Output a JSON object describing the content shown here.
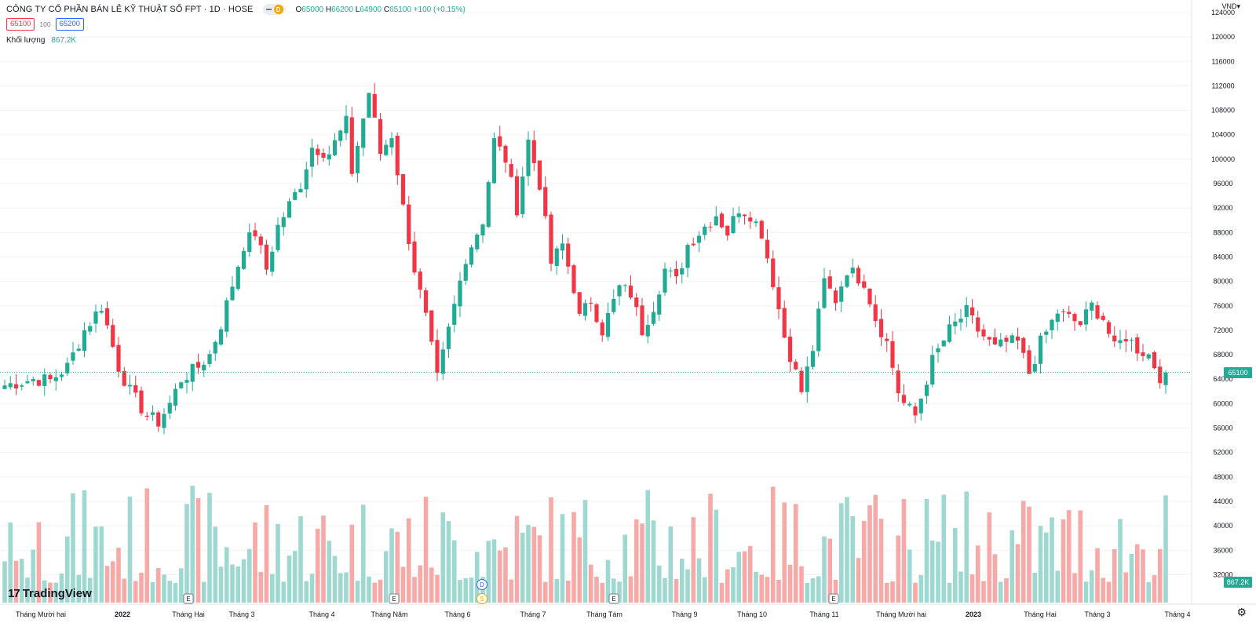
{
  "header": {
    "title": "CÔNG TY CỔ PHẦN BÁN LẺ KỸ THUẬT SỐ FPT · 1D · HOSE",
    "status_badge": "D",
    "ohlc": {
      "o_label": "O",
      "o": "65000",
      "h_label": "H",
      "h": "66200",
      "l_label": "L",
      "l": "64900",
      "c_label": "C",
      "c": "65100",
      "change": "+100 (+0.15%)"
    },
    "bid": "65100",
    "spread": "100",
    "ask": "65200",
    "volume_label": "Khối lượng",
    "volume_value": "867.2K",
    "currency": "VND"
  },
  "branding": {
    "logo_mark": "17",
    "logo_text": "TradingView"
  },
  "colors": {
    "up": "#22ab94",
    "down": "#f23645",
    "up_vol": "#9fd8d0",
    "down_vol": "#f7a9a7",
    "grid": "#f0f3fa"
  },
  "chart_data": {
    "type": "candlestick",
    "y_axis": {
      "min": 30000,
      "max": 124000,
      "ticks": [
        32000,
        36000,
        40000,
        44000,
        48000,
        52000,
        56000,
        60000,
        64000,
        68000,
        72000,
        76000,
        80000,
        84000,
        88000,
        92000,
        96000,
        100000,
        104000,
        108000,
        112000,
        116000,
        120000,
        124000
      ]
    },
    "x_axis_labels": [
      "Tháng Mười hai",
      "2022",
      "Tháng Hai",
      "Tháng 3",
      "Tháng 4",
      "Tháng Năm",
      "Tháng 6",
      "Tháng 7",
      "Tháng Tám",
      "Tháng 9",
      "Tháng 10",
      "Tháng 11",
      "Tháng Mười hai",
      "2023",
      "Tháng Hai",
      "Tháng 3",
      "Tháng 4"
    ],
    "price_path": [
      [
        0,
        63000
      ],
      [
        5,
        64000
      ],
      [
        8,
        63800
      ],
      [
        11,
        66000
      ],
      [
        14,
        72000
      ],
      [
        17,
        76000
      ],
      [
        20,
        66000
      ],
      [
        22,
        62000
      ],
      [
        25,
        58000
      ],
      [
        27,
        57000
      ],
      [
        29,
        60000
      ],
      [
        31,
        64000
      ],
      [
        34,
        66000
      ],
      [
        36,
        68000
      ],
      [
        38,
        73000
      ],
      [
        42,
        86000
      ],
      [
        44,
        88000
      ],
      [
        46,
        82000
      ],
      [
        48,
        89000
      ],
      [
        52,
        96000
      ],
      [
        54,
        102000
      ],
      [
        57,
        101000
      ],
      [
        60,
        106000
      ],
      [
        61,
        98000
      ],
      [
        64,
        111000
      ],
      [
        66,
        101000
      ],
      [
        68,
        104000
      ],
      [
        70,
        92000
      ],
      [
        72,
        82000
      ],
      [
        74,
        74000
      ],
      [
        76,
        64000
      ],
      [
        79,
        76000
      ],
      [
        81,
        84000
      ],
      [
        84,
        90000
      ],
      [
        86,
        103000
      ],
      [
        88,
        100000
      ],
      [
        90,
        92000
      ],
      [
        92,
        103000
      ],
      [
        94,
        96000
      ],
      [
        96,
        83000
      ],
      [
        98,
        86000
      ],
      [
        100,
        79000
      ],
      [
        101,
        74000
      ],
      [
        103,
        77000
      ],
      [
        105,
        72000
      ],
      [
        108,
        79000
      ],
      [
        110,
        78000
      ],
      [
        112,
        72000
      ],
      [
        114,
        76000
      ],
      [
        116,
        82000
      ],
      [
        118,
        80000
      ],
      [
        120,
        86000
      ],
      [
        123,
        89000
      ],
      [
        125,
        91000
      ],
      [
        127,
        88000
      ],
      [
        129,
        92000
      ],
      [
        131,
        91000
      ],
      [
        133,
        88000
      ],
      [
        135,
        80000
      ],
      [
        137,
        71000
      ],
      [
        140,
        62000
      ],
      [
        142,
        69000
      ],
      [
        144,
        80000
      ],
      [
        146,
        77000
      ],
      [
        148,
        82000
      ],
      [
        151,
        80000
      ],
      [
        153,
        74000
      ],
      [
        155,
        70000
      ],
      [
        157,
        62000
      ],
      [
        158,
        60000
      ],
      [
        160,
        58000
      ],
      [
        163,
        67000
      ],
      [
        166,
        72000
      ],
      [
        169,
        75000
      ],
      [
        171,
        72000
      ],
      [
        174,
        69000
      ],
      [
        176,
        70000
      ],
      [
        178,
        70000
      ],
      [
        180,
        65000
      ],
      [
        182,
        70000
      ],
      [
        185,
        75000
      ],
      [
        187,
        74000
      ],
      [
        189,
        73000
      ],
      [
        191,
        76000
      ],
      [
        193,
        74000
      ],
      [
        195,
        69000
      ],
      [
        197,
        71000
      ],
      [
        199,
        69000
      ],
      [
        201,
        68000
      ],
      [
        203,
        64500
      ],
      [
        204,
        65100
      ]
    ],
    "last_price": 65100,
    "last_volume": "867.2K",
    "volume_axis_ticks": [
      32000,
      36000,
      40000,
      44000,
      48000
    ],
    "event_markers": [
      {
        "label": "E"
      },
      {
        "label": "E"
      },
      {
        "label": "D"
      },
      {
        "label": "S"
      },
      {
        "label": "E"
      },
      {
        "label": "E"
      }
    ]
  }
}
